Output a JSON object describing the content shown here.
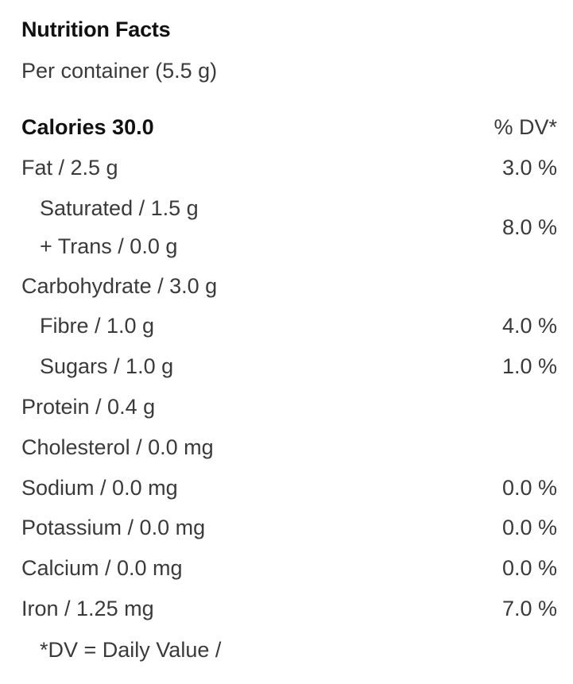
{
  "title": "Nutrition Facts",
  "serving": "Per container (5.5 g)",
  "calories": {
    "label": "Calories 30.0",
    "dv_header": "% DV*"
  },
  "rows": {
    "fat": {
      "label": "Fat / 2.5 g",
      "dv": "3.0 %"
    },
    "saturated": {
      "label": "Saturated / 1.5 g"
    },
    "trans": {
      "label": "+ Trans / 0.0 g"
    },
    "saturated_trans_dv": "8.0 %",
    "carbohydrate": {
      "label": "Carbohydrate / 3.0 g"
    },
    "fibre": {
      "label": "Fibre / 1.0 g",
      "dv": "4.0 %"
    },
    "sugars": {
      "label": "Sugars / 1.0 g",
      "dv": "1.0 %"
    },
    "protein": {
      "label": "Protein / 0.4 g"
    },
    "cholesterol": {
      "label": "Cholesterol / 0.0 mg"
    },
    "sodium": {
      "label": "Sodium / 0.0 mg",
      "dv": "0.0 %"
    },
    "potassium": {
      "label": "Potassium / 0.0 mg",
      "dv": "0.0 %"
    },
    "calcium": {
      "label": "Calcium / 0.0 mg",
      "dv": "0.0 %"
    },
    "iron": {
      "label": "Iron / 1.25 mg",
      "dv": "7.0 %"
    }
  },
  "footnote": "*DV = Daily Value /"
}
